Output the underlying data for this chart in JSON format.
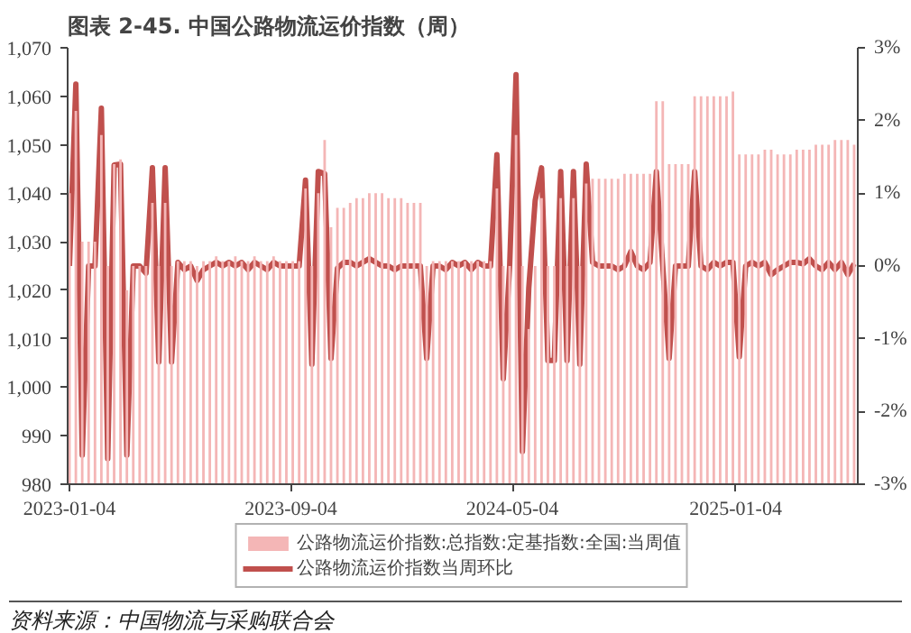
{
  "chart_data": {
    "type": "bar",
    "title": "图表 2-45. 中国公路物流运价指数（周）",
    "annotations": [
      "资料来源：中国物流与采购联合会"
    ],
    "x": [
      "2023-01-04",
      "2023-01-11",
      "2023-01-18",
      "2023-01-25",
      "2023-02-01",
      "2023-02-08",
      "2023-02-15",
      "2023-02-22",
      "2023-03-01",
      "2023-03-08",
      "2023-03-15",
      "2023-03-22",
      "2023-03-29",
      "2023-04-05",
      "2023-04-12",
      "2023-04-19",
      "2023-04-26",
      "2023-05-03",
      "2023-05-10",
      "2023-05-17",
      "2023-05-24",
      "2023-05-31",
      "2023-06-07",
      "2023-06-14",
      "2023-06-21",
      "2023-06-28",
      "2023-07-05",
      "2023-07-12",
      "2023-07-19",
      "2023-07-26",
      "2023-08-02",
      "2023-08-09",
      "2023-08-16",
      "2023-08-23",
      "2023-08-30",
      "2023-09-06",
      "2023-09-13",
      "2023-09-20",
      "2023-09-27",
      "2023-10-04",
      "2023-10-11",
      "2023-10-18",
      "2023-10-25",
      "2023-11-01",
      "2023-11-08",
      "2023-11-15",
      "2023-11-22",
      "2023-11-29",
      "2023-12-06",
      "2023-12-13",
      "2023-12-20",
      "2023-12-27",
      "2024-01-03",
      "2024-01-10",
      "2024-01-17",
      "2024-01-24",
      "2024-01-31",
      "2024-02-07",
      "2024-02-14",
      "2024-02-21",
      "2024-02-28",
      "2024-03-06",
      "2024-03-13",
      "2024-03-20",
      "2024-03-27",
      "2024-04-03",
      "2024-04-10",
      "2024-04-17",
      "2024-04-24",
      "2024-05-01",
      "2024-05-08",
      "2024-05-15",
      "2024-05-22",
      "2024-05-29",
      "2024-06-05",
      "2024-06-12",
      "2024-06-19",
      "2024-06-26",
      "2024-07-03",
      "2024-07-10",
      "2024-07-17",
      "2024-07-24",
      "2024-07-31",
      "2024-08-07",
      "2024-08-14",
      "2024-08-21",
      "2024-08-28",
      "2024-09-04",
      "2024-09-11",
      "2024-09-18",
      "2024-09-25",
      "2024-10-02",
      "2024-10-09",
      "2024-10-16",
      "2024-10-23",
      "2024-10-30",
      "2024-11-06",
      "2024-11-13",
      "2024-11-20",
      "2024-11-27",
      "2024-12-04",
      "2024-12-11",
      "2024-12-18",
      "2024-12-25",
      "2025-01-01",
      "2025-01-08",
      "2025-01-15",
      "2025-01-22",
      "2025-01-29",
      "2025-02-05",
      "2025-02-12",
      "2025-02-19",
      "2025-02-26",
      "2025-03-05",
      "2025-03-12",
      "2025-03-19",
      "2025-03-26",
      "2025-04-02",
      "2025-04-09",
      "2025-04-16",
      "2025-04-23",
      "2025-04-30",
      "2025-05-07",
      "2025-05-14"
    ],
    "xlim": [
      "2023-01-02",
      "2025-05-18"
    ],
    "xticks": [
      "2023-01-04",
      "2023-09-04",
      "2024-05-04",
      "2025-01-04"
    ],
    "ylim": [
      980,
      1070
    ],
    "yticks": [
      980,
      990,
      {
        "value": 1000,
        "label": "1,000"
      },
      {
        "value": 1010,
        "label": "1,010"
      },
      {
        "value": 1020,
        "label": "1,020"
      },
      {
        "value": 1030,
        "label": "1,030"
      },
      {
        "value": 1040,
        "label": "1,040"
      },
      {
        "value": 1050,
        "label": "1,050"
      },
      {
        "value": 1060,
        "label": "1,060"
      },
      {
        "value": 1070,
        "label": "1,070"
      }
    ],
    "y2lim": [
      -3,
      3
    ],
    "y2ticks": [
      {
        "value": -3,
        "label": "-3%"
      },
      {
        "value": -2,
        "label": "-2%"
      },
      {
        "value": -1,
        "label": "-1%"
      },
      {
        "value": 0,
        "label": "0%"
      },
      {
        "value": 1,
        "label": "1%"
      },
      {
        "value": 2,
        "label": "2%"
      },
      {
        "value": 3,
        "label": "3%"
      }
    ],
    "legend": "bottom",
    "grid": false,
    "series": [
      {
        "name": "公路物流运价指数:总指数:定基指数:全国:当周值",
        "color": "#f4b6b6",
        "values": [
          1040,
          1057,
          1030,
          1030,
          1030,
          1052,
          1025,
          1046,
          1047,
          1020,
          1025,
          1025,
          1025,
          1038,
          1025,
          1038,
          1025,
          1026,
          1026,
          1026,
          1025,
          1026,
          1026,
          1027,
          1026,
          1026,
          1027,
          1026,
          1026,
          1027,
          1026,
          1026,
          1027,
          1026,
          1026,
          1026,
          1026,
          1041,
          1025,
          1040,
          1051,
          1033,
          1037,
          1037,
          1038,
          1039,
          1039,
          1040,
          1040,
          1040,
          1039,
          1039,
          1039,
          1038,
          1038,
          1038,
          1025,
          1026,
          1026,
          1026,
          1026,
          1026,
          1026,
          1026,
          1026,
          1026,
          1026,
          1041,
          1025,
          1025,
          1052,
          1025,
          1012,
          1025,
          1039,
          1025,
          1025,
          1039,
          1025,
          1039,
          1025,
          1042,
          1043,
          1043,
          1043,
          1043,
          1043,
          1044,
          1044,
          1044,
          1044,
          1044,
          1059,
          1059,
          1046,
          1046,
          1046,
          1046,
          1060,
          1060,
          1060,
          1060,
          1060,
          1060,
          1061,
          1048,
          1048,
          1048,
          1048,
          1049,
          1049,
          1048,
          1048,
          1048,
          1049,
          1049,
          1049,
          1050,
          1050,
          1050,
          1051,
          1051,
          1051,
          1050
        ]
      },
      {
        "name": "公路物流运价指数当周环比",
        "type": "line",
        "axis": "y2",
        "color": "#c0504d",
        "values": [
          0.0,
          2.5,
          -2.6,
          0.0,
          0.0,
          2.17,
          -2.65,
          1.39,
          1.4,
          -2.6,
          0.0,
          0.0,
          -0.1,
          1.35,
          -1.32,
          1.35,
          -1.32,
          0.05,
          -0.05,
          0.0,
          -0.2,
          -0.05,
          0.0,
          0.05,
          0.0,
          0.05,
          0.0,
          0.05,
          -0.05,
          0.05,
          0.0,
          -0.05,
          0.05,
          0.0,
          0.0,
          0.0,
          0.0,
          1.18,
          -1.35,
          1.3,
          1.27,
          -1.27,
          -0.03,
          0.05,
          0.05,
          0.0,
          0.05,
          0.1,
          0.05,
          0.0,
          0.0,
          -0.05,
          0.0,
          0.0,
          0.0,
          0.0,
          -1.27,
          0.0,
          0.0,
          -0.05,
          0.05,
          0.0,
          0.05,
          -0.05,
          0.05,
          0.0,
          0.0,
          1.53,
          -1.55,
          0.0,
          2.63,
          -2.55,
          -0.3,
          0.9,
          1.35,
          -1.3,
          -1.3,
          1.3,
          -1.3,
          1.3,
          -1.35,
          1.4,
          0.05,
          0.0,
          0.0,
          0.0,
          -0.05,
          0.0,
          0.2,
          0.0,
          -0.05,
          0.05,
          1.3,
          0.0,
          -1.27,
          0.0,
          0.0,
          0.0,
          1.3,
          0.0,
          -0.05,
          0.05,
          0.0,
          0.05,
          0.05,
          -1.25,
          0.0,
          0.05,
          0.0,
          0.05,
          -0.12,
          -0.05,
          0.0,
          0.05,
          0.05,
          0.03,
          0.1,
          0.0,
          -0.05,
          0.05,
          -0.05,
          0.05,
          -0.12,
          0.03
        ]
      }
    ]
  }
}
